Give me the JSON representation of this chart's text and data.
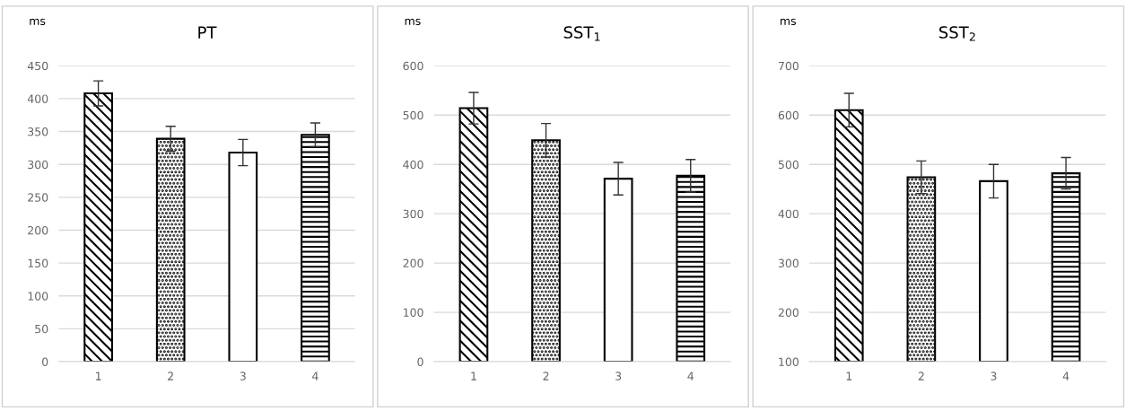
{
  "chart_data": [
    {
      "type": "bar",
      "title": "PT",
      "ylabel": "ms",
      "categories": [
        "1",
        "2",
        "3",
        "4"
      ],
      "values": [
        408,
        339,
        318,
        345
      ],
      "errors": [
        19,
        19,
        20,
        18
      ],
      "colors": [
        "#000000",
        "#000000",
        "#000000",
        "#000000"
      ],
      "ylim": [
        0,
        450
      ],
      "yticks": [
        0,
        50,
        100,
        150,
        200,
        250,
        300,
        350,
        400,
        450
      ],
      "grid": "y"
    },
    {
      "type": "bar",
      "title": "SST$_{1}$",
      "ylabel": "ms",
      "categories": [
        "1",
        "2",
        "3",
        "4"
      ],
      "values": [
        514,
        449,
        371,
        377
      ],
      "errors": [
        32,
        34,
        33,
        33
      ],
      "colors": [
        "#000000",
        "#000000",
        "#000000",
        "#000000"
      ],
      "ylim": [
        0,
        600
      ],
      "yticks": [
        0,
        100,
        200,
        300,
        400,
        500,
        600
      ],
      "grid": "y"
    },
    {
      "type": "bar",
      "title": "SST$_{2}$",
      "ylabel": "ms",
      "categories": [
        "1",
        "2",
        "3",
        "4"
      ],
      "values": [
        610,
        474,
        466,
        482
      ],
      "errors": [
        34,
        33,
        34,
        32
      ],
      "colors": [
        "#000000",
        "#000000",
        "#000000",
        "#000000"
      ],
      "ylim": [
        100,
        700
      ],
      "yticks": [
        100,
        200,
        300,
        400,
        500,
        600,
        700
      ],
      "grid": "y"
    }
  ]
}
